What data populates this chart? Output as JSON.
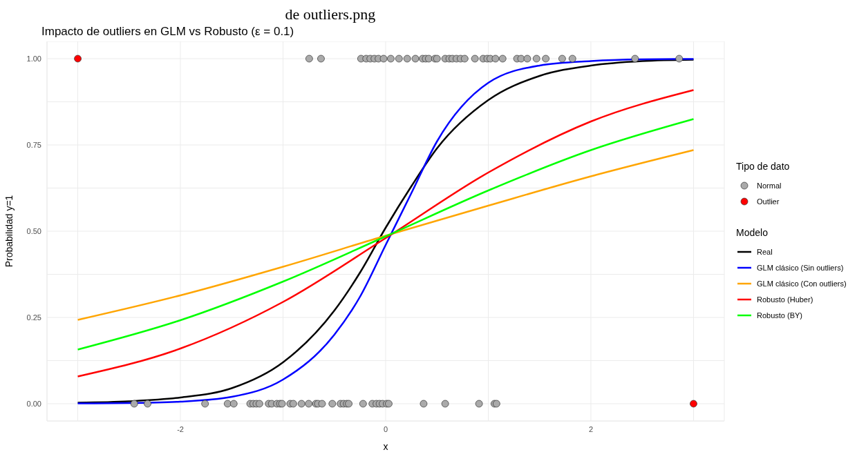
{
  "chart_data": {
    "type": "line",
    "title": "Impacto de outliers en GLM vs Robusto (ε = 0.1)",
    "annotations": [
      "de outliers.png"
    ],
    "xlabel": "x",
    "ylabel": "Probabilidad y=1",
    "legend_title": [
      "Tipo de dato",
      "Modelo"
    ],
    "xlim": [
      -3.3,
      3.3
    ],
    "ylim": [
      -0.05,
      1.05
    ],
    "xticks": [
      {
        "value": -3,
        "label": null
      },
      -2,
      {
        "value": -1,
        "label": null
      },
      0,
      {
        "value": 1,
        "label": null
      },
      2,
      {
        "value": 3,
        "label": null
      }
    ],
    "yticks": [
      {
        "value": 0,
        "label": "0.00"
      },
      {
        "value": 0.125,
        "label": null
      },
      {
        "value": 0.25,
        "label": "0.25"
      },
      {
        "value": 0.375,
        "label": null
      },
      {
        "value": 0.5,
        "label": "0.50"
      },
      {
        "value": 0.625,
        "label": null
      },
      {
        "value": 0.75,
        "label": "0.75"
      },
      {
        "value": 0.875,
        "label": null
      },
      {
        "value": 1,
        "label": "1.00"
      }
    ],
    "grid": true,
    "legend": "right",
    "line_style": "solid",
    "series": [
      {
        "name": "Normal",
        "type": "scatter",
        "marker": "circle",
        "color": "#aaaaaa",
        "x": [
          -0.745,
          -0.63,
          -0.24,
          -0.19,
          -0.15,
          -0.11,
          -0.07,
          -0.02,
          0.05,
          0.13,
          0.21,
          0.29,
          0.36,
          0.39,
          0.42,
          0.48,
          0.5,
          0.58,
          0.62,
          0.65,
          0.69,
          0.73,
          0.77,
          0.87,
          0.95,
          0.99,
          1.02,
          1.07,
          1.14,
          1.28,
          1.32,
          1.38,
          1.47,
          1.56,
          1.72,
          1.82,
          2.43,
          2.86,
          -2.45,
          -2.32,
          -1.76,
          -1.54,
          -1.48,
          -1.32,
          -1.29,
          -1.26,
          -1.23,
          -1.14,
          -1.11,
          -1.06,
          -1.03,
          -1.01,
          -0.93,
          -0.9,
          -0.82,
          -0.75,
          -0.68,
          -0.66,
          -0.62,
          -0.52,
          -0.44,
          -0.41,
          -0.38,
          -0.36,
          -0.22,
          -0.13,
          -0.09,
          -0.06,
          -0.03,
          0.01,
          0.03,
          0.37,
          0.58,
          0.91,
          1.06,
          1.08
        ],
        "values": [
          1,
          1,
          1,
          1,
          1,
          1,
          1,
          1,
          1,
          1,
          1,
          1,
          1,
          1,
          1,
          1,
          1,
          1,
          1,
          1,
          1,
          1,
          1,
          1,
          1,
          1,
          1,
          1,
          1,
          1,
          1,
          1,
          1,
          1,
          1,
          1,
          1,
          1,
          0,
          0,
          0,
          0,
          0,
          0,
          0,
          0,
          0,
          0,
          0,
          0,
          0,
          0,
          0,
          0,
          0,
          0,
          0,
          0,
          0,
          0,
          0,
          0,
          0,
          0,
          0,
          0,
          0,
          0,
          0,
          0,
          0,
          0,
          0,
          0,
          0,
          0
        ]
      },
      {
        "name": "Outlier",
        "type": "scatter",
        "marker": "circle",
        "color": "#ff0000",
        "x": [
          -3,
          3
        ],
        "values": [
          1,
          0
        ]
      },
      {
        "name": "Real",
        "color": "#000000",
        "x": [
          -3,
          -2.5,
          -2,
          -1.5,
          -1,
          -0.5,
          -0.25,
          0,
          0.25,
          0.5,
          1,
          1.5,
          2,
          2.5,
          3
        ],
        "values": [
          0.003,
          0.007,
          0.018,
          0.045,
          0.12,
          0.27,
          0.38,
          0.51,
          0.63,
          0.74,
          0.88,
          0.95,
          0.98,
          0.993,
          0.997
        ]
      },
      {
        "name": "GLM clásico (Sin outliers)",
        "color": "#0000ff",
        "x": [
          -3,
          -2.5,
          -2,
          -1.5,
          -1,
          -0.5,
          -0.25,
          0,
          0.25,
          0.5,
          1,
          1.5,
          2,
          2.5,
          3
        ],
        "values": [
          0.001,
          0.002,
          0.006,
          0.02,
          0.07,
          0.2,
          0.31,
          0.46,
          0.61,
          0.76,
          0.93,
          0.98,
          0.993,
          0.998,
          0.999
        ]
      },
      {
        "name": "GLM clásico (Con outliers)",
        "color": "#ffa500",
        "x": [
          -3,
          -2,
          -1,
          0,
          1,
          2,
          3
        ],
        "values": [
          0.243,
          0.314,
          0.397,
          0.487,
          0.574,
          0.659,
          0.735
        ]
      },
      {
        "name": "Robusto (Huber)",
        "color": "#ff0000",
        "x": [
          -3,
          -2,
          -1,
          0,
          1,
          2,
          3
        ],
        "values": [
          0.079,
          0.16,
          0.295,
          0.48,
          0.67,
          0.818,
          0.909
        ]
      },
      {
        "name": "Robusto (BY)",
        "color": "#00ff00",
        "x": [
          -3,
          -2,
          -1,
          0,
          1,
          2,
          3
        ],
        "values": [
          0.157,
          0.242,
          0.354,
          0.485,
          0.618,
          0.735,
          0.825
        ]
      }
    ]
  }
}
